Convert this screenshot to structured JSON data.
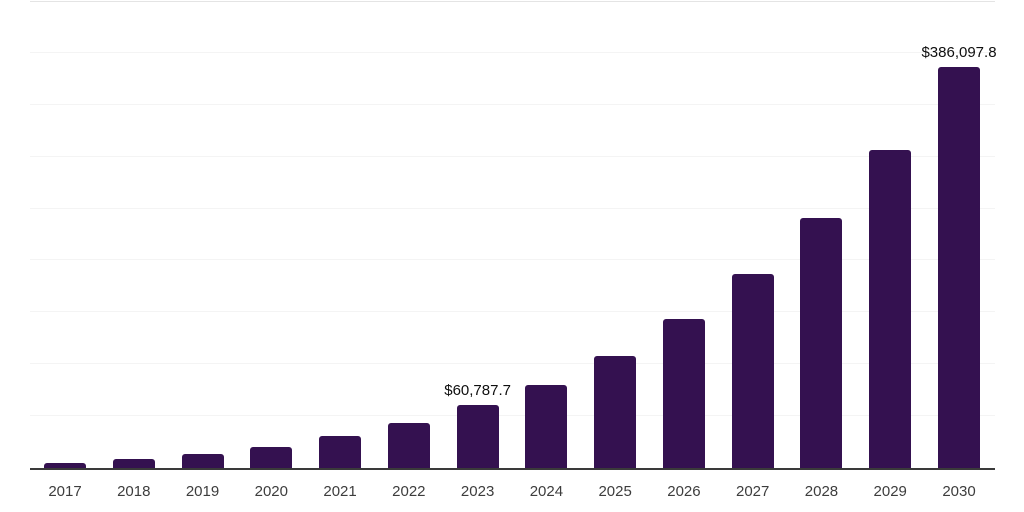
{
  "chart_data": {
    "type": "bar",
    "title": "",
    "xlabel": "",
    "ylabel": "",
    "categories": [
      "2017",
      "2018",
      "2019",
      "2020",
      "2021",
      "2022",
      "2023",
      "2024",
      "2025",
      "2026",
      "2027",
      "2028",
      "2029",
      "2030"
    ],
    "values": [
      4500,
      8400,
      13300,
      20600,
      31300,
      43500,
      60787.7,
      80300,
      107900,
      143200,
      187000,
      240900,
      306700,
      386097.8
    ],
    "bar_labels": [
      "",
      "",
      "",
      "",
      "",
      "",
      "$60,787.7",
      "",
      "",
      "",
      "",
      "",
      "",
      "$386,097.8"
    ],
    "ylim": [
      0,
      450000
    ],
    "gridline_step": 50000,
    "grid": true,
    "legend": false,
    "bar_color": "#341150",
    "gridline_color": "#f4f4f4",
    "top_border_color": "#e4e4e4",
    "axis_line_color": "#3a3a3a",
    "value_label_color": "#0f0f0f",
    "tick_label_color": "#3d3d3d"
  }
}
